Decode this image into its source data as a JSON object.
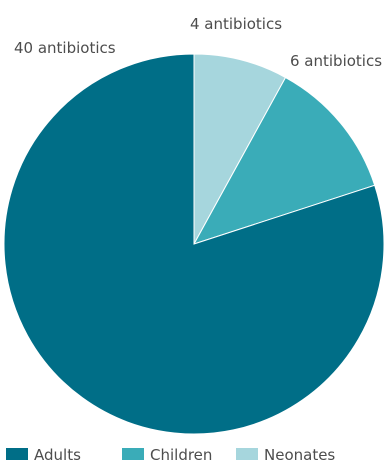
{
  "chart_data": {
    "type": "pie",
    "categories": [
      "Adults",
      "Children",
      "Neonates"
    ],
    "values": [
      40,
      6,
      4
    ],
    "data_labels": [
      "40 antibiotics",
      "6 antibiotics",
      "4 antibiotics"
    ],
    "colors": [
      "#006e87",
      "#3aacb8",
      "#a6d6dd"
    ],
    "start_angle_deg": 0,
    "direction": "clockwise-from-top",
    "legend_position": "bottom"
  }
}
